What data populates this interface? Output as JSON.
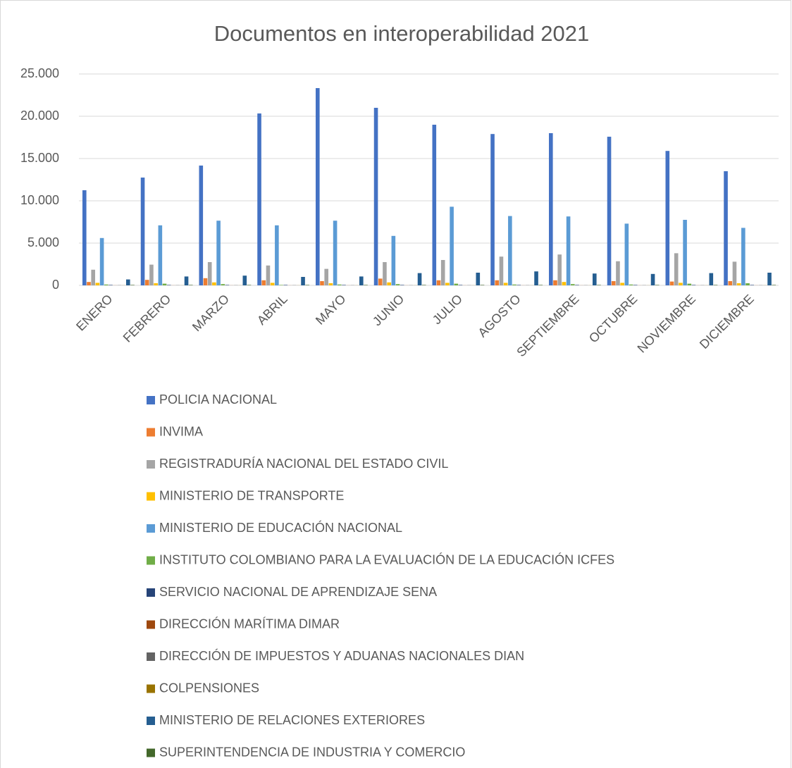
{
  "chart_data": {
    "type": "bar",
    "title": "Documentos en interoperabilidad 2021",
    "categories": [
      "ENERO",
      "FEBRERO",
      "MARZO",
      "ABRIL",
      "MAYO",
      "JUNIO",
      "JULIO",
      "AGOSTO",
      "SEPTIEMBRE",
      "OCTUBRE",
      "NOVIEMBRE",
      "DICIEMBRE"
    ],
    "ylim": [
      0,
      25000
    ],
    "yticks": [
      0,
      {
        "value": 5000,
        "label": "5.000"
      },
      {
        "value": 10000,
        "label": "10.000"
      },
      {
        "value": 15000,
        "label": "15.000"
      },
      {
        "value": 20000,
        "label": "20.000"
      },
      {
        "value": 25000,
        "label": "25.000"
      }
    ],
    "grid": true,
    "legend": "bottom",
    "series": [
      {
        "name": "POLICIA NACIONAL",
        "color": "#4472c4",
        "values": [
          11250,
          12750,
          14170,
          20330,
          23330,
          21000,
          19000,
          17900,
          18000,
          17580,
          15900,
          13500
        ]
      },
      {
        "name": "INVIMA",
        "color": "#ed7d31",
        "values": [
          400,
          650,
          850,
          600,
          500,
          800,
          600,
          600,
          600,
          500,
          450,
          500
        ]
      },
      {
        "name": "REGISTRADURÍA NACIONAL DEL ESTADO CIVIL",
        "color": "#a5a5a5",
        "values": [
          1850,
          2450,
          2750,
          2350,
          1950,
          2750,
          3000,
          3400,
          3650,
          2850,
          3800,
          2800
        ]
      },
      {
        "name": "MINISTERIO DE TRANSPORTE",
        "color": "#ffc000",
        "values": [
          300,
          250,
          350,
          300,
          250,
          350,
          300,
          300,
          400,
          300,
          300,
          250
        ]
      },
      {
        "name": "MINISTERIO DE EDUCACIÓN NACIONAL",
        "color": "#5b9bd5",
        "values": [
          5600,
          7100,
          7650,
          7100,
          7650,
          5850,
          9300,
          8200,
          8150,
          7300,
          7750,
          6800
        ]
      },
      {
        "name": "INSTITUTO COLOMBIANO PARA LA EVALUACIÓN DE LA EDUCACIÓN ICFES",
        "color": "#70ad47",
        "values": [
          100,
          200,
          150,
          50,
          100,
          150,
          200,
          100,
          150,
          100,
          200,
          250
        ]
      },
      {
        "name": "SERVICIO NACIONAL DE APRENDIZAJE SENA",
        "color": "#264478",
        "values": [
          50,
          50,
          50,
          50,
          50,
          50,
          50,
          50,
          50,
          50,
          50,
          50
        ]
      },
      {
        "name": "DIRECCIÓN MARÍTIMA DIMAR",
        "color": "#9e480e",
        "values": [
          10,
          10,
          10,
          10,
          10,
          10,
          10,
          10,
          10,
          10,
          10,
          10
        ]
      },
      {
        "name": "DIRECCIÓN DE IMPUESTOS Y ADUANAS NACIONALES DIAN",
        "color": "#636363",
        "values": [
          20,
          20,
          20,
          20,
          20,
          20,
          20,
          20,
          20,
          20,
          20,
          20
        ]
      },
      {
        "name": "COLPENSIONES",
        "color": "#997300",
        "values": [
          10,
          10,
          10,
          10,
          10,
          10,
          10,
          10,
          10,
          10,
          10,
          10
        ]
      },
      {
        "name": "MINISTERIO DE RELACIONES EXTERIORES",
        "color": "#255e91",
        "values": [
          700,
          1050,
          1150,
          1000,
          1050,
          1450,
          1500,
          1650,
          1400,
          1350,
          1450,
          1500
        ]
      },
      {
        "name": "SUPERINTENDENCIA DE INDUSTRIA Y COMERCIO",
        "color": "#43682b",
        "values": [
          50,
          50,
          50,
          50,
          50,
          50,
          50,
          50,
          50,
          50,
          50,
          50
        ]
      }
    ]
  }
}
